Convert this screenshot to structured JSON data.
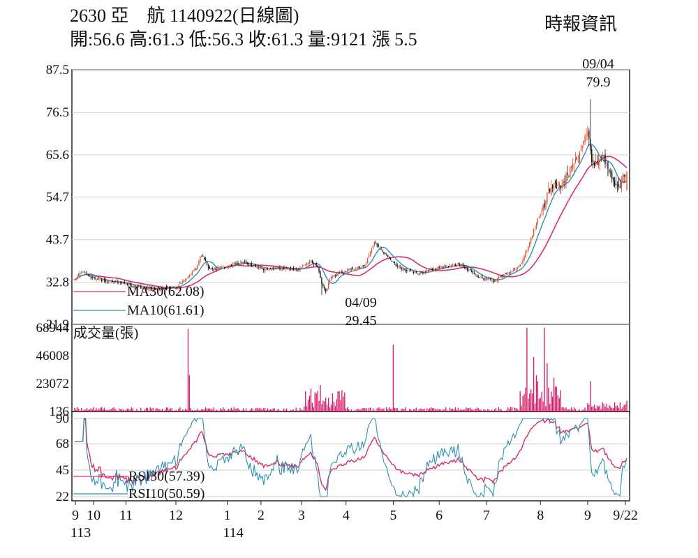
{
  "header": {
    "title": "2630 亞　航 1140922(日線圖)",
    "ohlc": "開:56.6 高:61.3 低:56.3 收:61.3 量:9121 漲 5.5",
    "source": "時報資訊"
  },
  "colors": {
    "up": "#e34a2a",
    "down": "#111111",
    "ma30": "#d6306a",
    "ma10": "#2f8fb0",
    "volume": "#d81b6a",
    "grid": "#cfcfcf"
  },
  "chart_data": [
    {
      "type": "candlestick",
      "name": "price",
      "y_ticks": [
        "87.5",
        "76.5",
        "65.6",
        "54.7",
        "43.7",
        "32.8",
        "21.9"
      ],
      "ylim": [
        21.9,
        87.5
      ],
      "legend": [
        {
          "label": "MA30(62.08)",
          "color": "#d6306a"
        },
        {
          "label": "MA10(61.61)",
          "color": "#2f8fb0"
        }
      ],
      "annotations": [
        {
          "date": "09/04",
          "value": "79.9",
          "kind": "high"
        },
        {
          "date": "04/09",
          "value": "29.45",
          "kind": "low"
        }
      ],
      "anchors": [
        [
          0,
          33.5
        ],
        [
          5,
          35.5
        ],
        [
          15,
          33.5
        ],
        [
          30,
          33
        ],
        [
          45,
          31.5
        ],
        [
          60,
          31
        ],
        [
          75,
          31.5
        ],
        [
          84,
          34
        ],
        [
          90,
          36.5
        ],
        [
          94,
          40
        ],
        [
          100,
          36
        ],
        [
          110,
          36.5
        ],
        [
          125,
          38
        ],
        [
          140,
          36
        ],
        [
          150,
          36.5
        ],
        [
          165,
          36
        ],
        [
          175,
          38
        ],
        [
          180,
          37
        ],
        [
          183,
          32
        ],
        [
          186,
          30.5
        ],
        [
          190,
          34
        ],
        [
          200,
          35.5
        ],
        [
          215,
          37
        ],
        [
          222,
          43
        ],
        [
          230,
          40
        ],
        [
          240,
          36.5
        ],
        [
          255,
          35
        ],
        [
          270,
          36.5
        ],
        [
          285,
          37.5
        ],
        [
          300,
          34
        ],
        [
          310,
          33
        ],
        [
          320,
          35
        ],
        [
          330,
          37
        ],
        [
          335,
          41
        ],
        [
          342,
          48
        ],
        [
          348,
          53
        ],
        [
          353,
          58
        ],
        [
          360,
          57.5
        ],
        [
          368,
          62
        ],
        [
          375,
          66
        ],
        [
          380,
          72
        ],
        [
          384,
          62
        ],
        [
          390,
          66
        ],
        [
          398,
          60
        ],
        [
          403,
          56.5
        ],
        [
          408,
          61.3
        ]
      ]
    },
    {
      "type": "bar",
      "name": "volume",
      "title": "成交量(張)",
      "y_ticks": [
        "68944",
        "46008",
        "23072",
        "136"
      ],
      "ylim": [
        136,
        68944
      ]
    },
    {
      "type": "line",
      "name": "rsi",
      "y_ticks": [
        "90",
        "68",
        "45",
        "22"
      ],
      "ylim": [
        22,
        90
      ],
      "legend": [
        {
          "label": "RSI30(57.39)",
          "color": "#d6306a"
        },
        {
          "label": "RSI10(50.59)",
          "color": "#2f8fb0"
        }
      ]
    }
  ],
  "x_axis": {
    "labels": [
      {
        "text": "9",
        "pos": 0.5
      },
      {
        "text": "10",
        "pos": 14
      },
      {
        "text": "11",
        "pos": 38
      },
      {
        "text": "12",
        "pos": 75
      },
      {
        "text": "1",
        "pos": 113
      },
      {
        "text": "2",
        "pos": 138
      },
      {
        "text": "3",
        "pos": 168
      },
      {
        "text": "4",
        "pos": 201
      },
      {
        "text": "5",
        "pos": 236
      },
      {
        "text": "6",
        "pos": 270
      },
      {
        "text": "7",
        "pos": 305
      },
      {
        "text": "8",
        "pos": 345
      },
      {
        "text": "9",
        "pos": 380
      },
      {
        "text": "9/22",
        "pos": 408
      }
    ],
    "years": [
      {
        "text": "113",
        "pos": 0
      },
      {
        "text": "114",
        "pos": 113
      }
    ]
  }
}
